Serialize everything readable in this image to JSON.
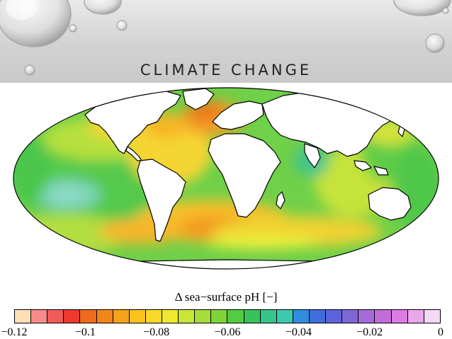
{
  "slide": {
    "title": "CLIMATE CHANGE"
  },
  "map": {
    "variable": "Δ sea−surface pH [−]",
    "land_color": "#ffffff",
    "coastline_color": "#000000"
  },
  "colorbar": {
    "label": "Δ sea−surface pH [−]",
    "colors": [
      "#fde0b6",
      "#f98a8a",
      "#f25a5a",
      "#ee3b2f",
      "#ee6a1c",
      "#f2861a",
      "#f6a21a",
      "#f9c21d",
      "#f9d92a",
      "#eee830",
      "#c9e538",
      "#a6dc3a",
      "#7fd43c",
      "#55cb43",
      "#38c25a",
      "#36c58a",
      "#3cc9b1",
      "#2f8de0",
      "#3d6edc",
      "#5d63dc",
      "#7f67da",
      "#a46bd8",
      "#c26cd9",
      "#dc7ce0",
      "#e9a7ec",
      "#f4d9f5"
    ],
    "ticks": [
      "−0.12",
      "−0.1",
      "−0.08",
      "−0.06",
      "−0.04",
      "−0.02",
      "0"
    ]
  }
}
